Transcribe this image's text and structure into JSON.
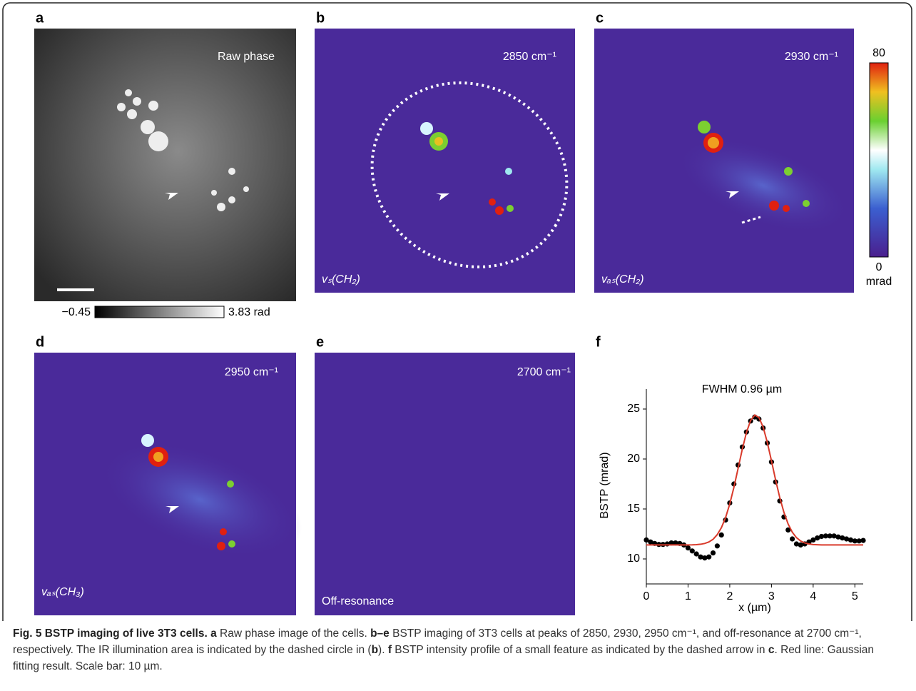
{
  "panels": [
    {
      "letter": "a",
      "label": "Raw phase"
    },
    {
      "letter": "b",
      "label": "2850 cm⁻¹",
      "mode": "vₛ(CH₂)"
    },
    {
      "letter": "c",
      "label": "2930 cm⁻¹",
      "mode": "vₐₛ(CH₂)"
    },
    {
      "letter": "d",
      "label": "2950 cm⁻¹",
      "mode": "vₐₛ(CH₃)"
    },
    {
      "letter": "e",
      "label": "2700 cm⁻¹",
      "mode": "Off-resonance"
    }
  ],
  "gray_colorbar": {
    "min": "−0.45",
    "max": "3.83 rad"
  },
  "color_colorbar": {
    "max": "80",
    "min": "0",
    "unit": "mrad"
  },
  "chart_data": {
    "type": "line",
    "letter": "f",
    "title": "FWHM 0.96  µm",
    "x_label": "x (µm)",
    "y_label": "BSTP (mrad)",
    "x": [
      0,
      0.1,
      0.2,
      0.3,
      0.4,
      0.5,
      0.6,
      0.7,
      0.8,
      0.9,
      1.0,
      1.1,
      1.2,
      1.3,
      1.4,
      1.5,
      1.6,
      1.7,
      1.8,
      1.9,
      2.0,
      2.1,
      2.2,
      2.3,
      2.4,
      2.5,
      2.6,
      2.7,
      2.8,
      2.9,
      3.0,
      3.1,
      3.2,
      3.3,
      3.4,
      3.5,
      3.6,
      3.7,
      3.8,
      3.9,
      4.0,
      4.1,
      4.2,
      4.3,
      4.4,
      4.5,
      4.6,
      4.7,
      4.8,
      4.9,
      5.0,
      5.1,
      5.2
    ],
    "series": [
      {
        "style": "dots",
        "color": "#000000",
        "values": [
          11.9,
          11.7,
          11.55,
          11.45,
          11.45,
          11.5,
          11.6,
          11.6,
          11.55,
          11.4,
          11.1,
          10.8,
          10.5,
          10.2,
          10.1,
          10.2,
          10.6,
          11.3,
          12.4,
          13.9,
          15.6,
          17.5,
          19.4,
          21.2,
          22.7,
          23.8,
          24.2,
          24.0,
          23.1,
          21.6,
          19.7,
          17.7,
          15.8,
          14.2,
          12.9,
          12.0,
          11.5,
          11.4,
          11.5,
          11.7,
          11.9,
          12.1,
          12.25,
          12.3,
          12.3,
          12.3,
          12.2,
          12.1,
          12.0,
          11.9,
          11.8,
          11.8,
          11.85
        ]
      },
      {
        "style": "line",
        "color": "#d93a2b",
        "values": [
          11.4,
          11.4,
          11.4,
          11.4,
          11.4,
          11.4,
          11.4,
          11.4,
          11.4,
          11.4,
          11.4,
          11.41,
          11.43,
          11.47,
          11.55,
          11.7,
          11.97,
          12.43,
          13.13,
          14.14,
          15.5,
          17.17,
          19.06,
          20.96,
          22.65,
          23.85,
          24.4,
          24.15,
          23.2,
          21.67,
          19.82,
          17.9,
          16.13,
          14.65,
          13.49,
          12.67,
          12.13,
          11.79,
          11.6,
          11.5,
          11.44,
          11.42,
          11.4,
          11.4,
          11.4,
          11.4,
          11.4,
          11.4,
          11.4,
          11.4,
          11.4,
          11.4,
          11.4
        ]
      }
    ],
    "xlim": [
      0,
      5.2
    ],
    "xticks": [
      0,
      1,
      2,
      3,
      4,
      5
    ],
    "ylim": [
      7.5,
      27
    ],
    "yticks": [
      10,
      15,
      20,
      25
    ]
  },
  "caption": {
    "segments": [
      {
        "text": "Fig. 5 BSTP imaging of live 3T3 cells.",
        "bold": true
      },
      {
        "text": " a",
        "bold": true
      },
      {
        "text": " Raw phase image of the cells. ",
        "bold": false
      },
      {
        "text": "b–e",
        "bold": true
      },
      {
        "text": " BSTP imaging of 3T3 cells at peaks of 2850, 2930, 2950 cm⁻¹, and off-resonance at 2700 cm⁻¹, respectively. The IR illumination area is indicated by the dashed circle in (",
        "bold": false
      },
      {
        "text": "b",
        "bold": true
      },
      {
        "text": "). ",
        "bold": false
      },
      {
        "text": "f",
        "bold": true
      },
      {
        "text": " BSTP intensity profile of a small feature as indicated by the dashed arrow in ",
        "bold": false
      },
      {
        "text": "c",
        "bold": true
      },
      {
        "text": ". Red line: Gaussian fitting result. Scale bar: 10 µm.",
        "bold": false
      }
    ]
  }
}
